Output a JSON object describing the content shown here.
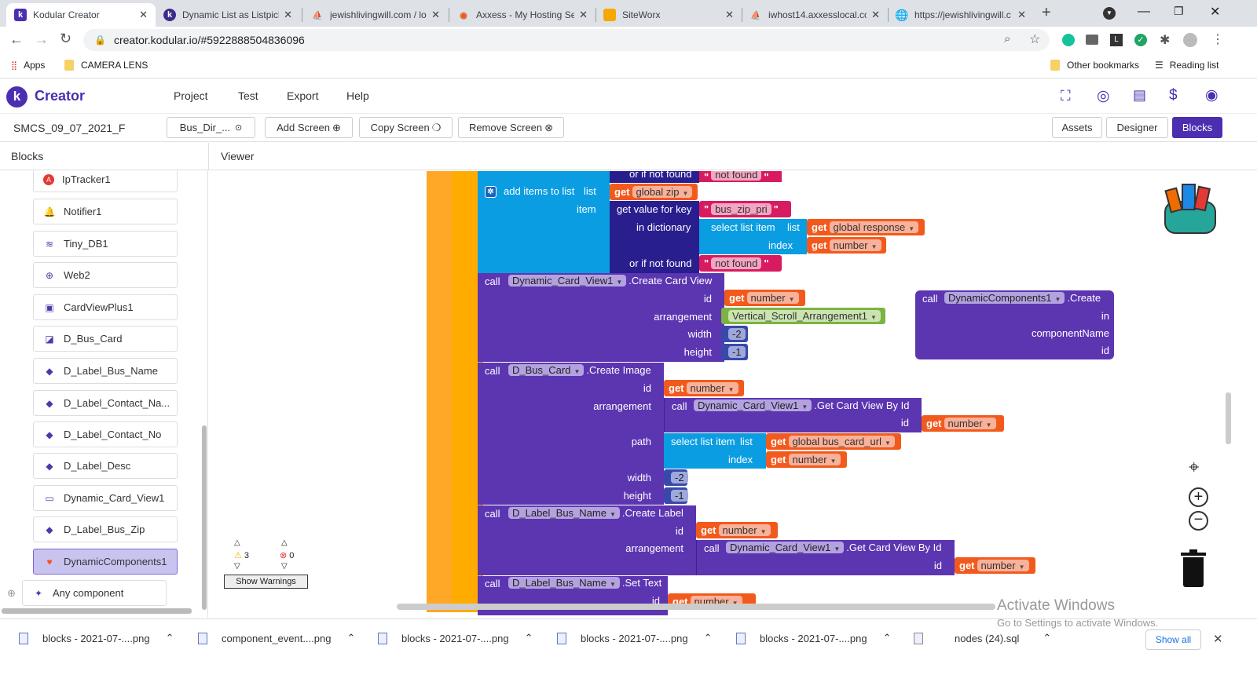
{
  "browser": {
    "tabs": [
      {
        "title": "Kodular Creator",
        "active": true
      },
      {
        "title": "Dynamic List as Listpicker"
      },
      {
        "title": "jewishlivingwill.com / lo"
      },
      {
        "title": "Axxess - My Hosting Se"
      },
      {
        "title": "SiteWorx"
      },
      {
        "title": "iwhost14.axxesslocal.co"
      },
      {
        "title": "https://jewishlivingwill.c"
      }
    ],
    "url": "creator.kodular.io/#5922888504836096",
    "bookmarks": {
      "apps": "Apps",
      "items": [
        "CAMERA LENS"
      ],
      "other": "Other bookmarks",
      "reading": "Reading list"
    }
  },
  "app": {
    "logo": "k",
    "title": "Creator",
    "menu": [
      "Project",
      "Test",
      "Export",
      "Help"
    ],
    "project_name": "SMCS_09_07_2021_F",
    "screen_select": "Bus_Dir_...",
    "add_screen": "Add Screen",
    "copy_screen": "Copy Screen",
    "remove_screen": "Remove Screen",
    "view_buttons": [
      "Assets",
      "Designer",
      "Blocks"
    ],
    "blocks_header": "Blocks",
    "viewer_header": "Viewer"
  },
  "components": [
    {
      "name": "IpTracker1",
      "icon": "ip-icon"
    },
    {
      "name": "Notifier1",
      "icon": "bell-icon"
    },
    {
      "name": "Tiny_DB1",
      "icon": "database-icon"
    },
    {
      "name": "Web2",
      "icon": "globe-icon"
    },
    {
      "name": "CardViewPlus1",
      "icon": "card-icon"
    },
    {
      "name": "D_Bus_Card",
      "icon": "image-icon"
    },
    {
      "name": "D_Label_Bus_Name",
      "icon": "label-icon"
    },
    {
      "name": "D_Label_Contact_Na...",
      "icon": "label-icon"
    },
    {
      "name": "D_Label_Contact_No",
      "icon": "label-icon"
    },
    {
      "name": "D_Label_Desc",
      "icon": "label-icon"
    },
    {
      "name": "Dynamic_Card_View1",
      "icon": "card-icon"
    },
    {
      "name": "D_Label_Bus_Zip",
      "icon": "label-icon"
    },
    {
      "name": "DynamicComponents1",
      "icon": "flame-icon",
      "selected": true
    }
  ],
  "any_component": "Any component",
  "blocks": {
    "or_if_not_found": "or if not found",
    "not_found": "not found",
    "add_items": "add items to list",
    "list": "list",
    "item": "item",
    "get": "get",
    "call": "call",
    "global_zip": "global zip",
    "get_value_for_key": "get value for key",
    "bus_zip_pri": "bus_zip_pri",
    "in_dictionary": "in dictionary",
    "select_list_item": "select list item",
    "index": "index",
    "global_response": "global response",
    "number": "number",
    "dynamic_card_view": "Dynamic_Card_View1",
    "create_card_view": ".Create Card View",
    "id": "id",
    "arrangement": "arrangement",
    "vertical_scroll": "Vertical_Scroll_Arrangement1",
    "width": "width",
    "height": "height",
    "neg2": "-2",
    "neg1": "-1",
    "d_bus_card": "D_Bus_Card",
    "create_image": ".Create Image",
    "get_card_view_by_id": ".Get Card View By Id",
    "path": "path",
    "global_bus_card_url": "global bus_card_url",
    "d_label_bus_name": "D_Label_Bus_Name",
    "create_label": ".Create Label",
    "set_text": ".Set Text",
    "dynamic_components": "DynamicComponents1",
    "create": ".Create",
    "in": "in",
    "component_name": "componentName"
  },
  "warnings": {
    "warn_count": "3",
    "error_count": "0",
    "show_warnings": "Show Warnings"
  },
  "watermark": {
    "title": "Activate Windows",
    "subtitle": "Go to Settings to activate Windows."
  },
  "downloads": {
    "items": [
      "blocks - 2021-07-....png",
      "component_event....png",
      "blocks - 2021-07-....png",
      "blocks - 2021-07-....png",
      "blocks - 2021-07-....png",
      "nodes (24).sql"
    ],
    "show_all": "Show all"
  },
  "colors": {
    "brand": "#4b2fb0",
    "component": "#5c35b1",
    "get": "#f25a1d",
    "text": "#d81b60",
    "list": "#0a9de2",
    "dictionary": "#291e8e",
    "control": "#ffab00"
  }
}
